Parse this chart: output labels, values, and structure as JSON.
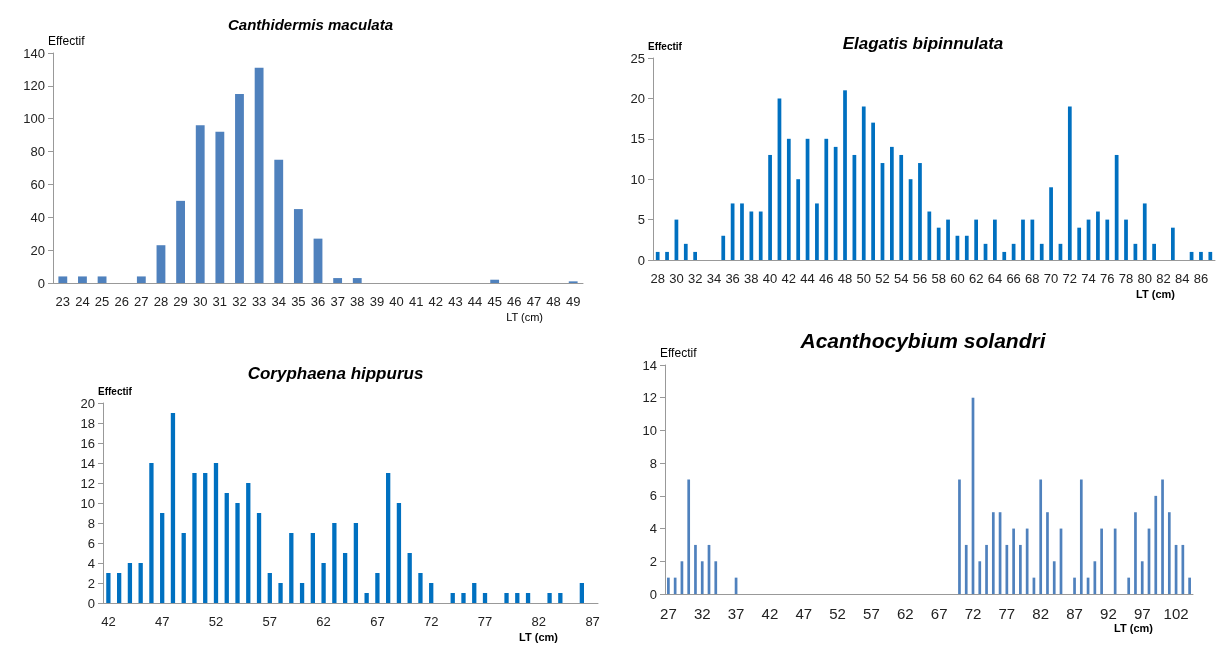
{
  "chart_data": [
    {
      "type": "bar",
      "title": "Canthidermis maculata",
      "xlabel": "LT (cm)",
      "ylabel": "Effectif",
      "color": "#4f81bd",
      "categories": [
        "23",
        "24",
        "25",
        "26",
        "27",
        "28",
        "29",
        "30",
        "31",
        "32",
        "33",
        "34",
        "35",
        "36",
        "37",
        "38",
        "39",
        "40",
        "41",
        "42",
        "43",
        "44",
        "45",
        "46",
        "47",
        "48",
        "49"
      ],
      "values": [
        4,
        4,
        4,
        0,
        4,
        23,
        50,
        96,
        92,
        115,
        131,
        75,
        45,
        27,
        3,
        3,
        0,
        0,
        0,
        0,
        0,
        0,
        2,
        0,
        0,
        0,
        1
      ],
      "ylim": [
        0,
        140
      ],
      "yticks": [
        0,
        20,
        40,
        60,
        80,
        100,
        120,
        140
      ]
    },
    {
      "type": "bar",
      "title": "Elagatis bipinnulata",
      "xlabel": "LT (cm)",
      "ylabel": "Effectif",
      "color": "#0070c0",
      "categories": [
        "28",
        null,
        "30",
        null,
        "32",
        null,
        "34",
        null,
        "36",
        null,
        "38",
        null,
        "40",
        null,
        "42",
        null,
        "44",
        null,
        "46",
        null,
        "48",
        null,
        "50",
        null,
        "52",
        null,
        "54",
        null,
        "56",
        null,
        "58",
        null,
        "60",
        null,
        "62",
        null,
        "64",
        null,
        "66",
        null,
        "68",
        null,
        "70",
        null,
        "72",
        null,
        "74",
        null,
        "76",
        null,
        "78",
        null,
        "80",
        null,
        "82",
        null,
        "84",
        null,
        "86",
        null
      ],
      "values": [
        1,
        1,
        5,
        2,
        1,
        0,
        0,
        3,
        7,
        7,
        6,
        6,
        13,
        20,
        15,
        10,
        15,
        7,
        15,
        14,
        21,
        13,
        19,
        17,
        12,
        14,
        13,
        10,
        12,
        6,
        4,
        5,
        3,
        3,
        5,
        2,
        5,
        1,
        2,
        5,
        5,
        2,
        9,
        2,
        19,
        4,
        5,
        6,
        5,
        13,
        5,
        2,
        7,
        2,
        0,
        4,
        0,
        1,
        1,
        1
      ],
      "ylim": [
        0,
        25
      ],
      "yticks": [
        0,
        5,
        10,
        15,
        20,
        25
      ]
    },
    {
      "type": "bar",
      "title": "Coryphaena hippurus",
      "xlabel": "LT (cm)",
      "ylabel": "Effectif",
      "color": "#0070c0",
      "categories": [
        "42",
        null,
        null,
        null,
        null,
        "47",
        null,
        null,
        null,
        null,
        "52",
        null,
        null,
        null,
        null,
        "57",
        null,
        null,
        null,
        null,
        "62",
        null,
        null,
        null,
        null,
        "67",
        null,
        null,
        null,
        null,
        "72",
        null,
        null,
        null,
        null,
        "77",
        null,
        null,
        null,
        null,
        "82",
        null,
        null,
        null,
        null,
        "87"
      ],
      "values": [
        3,
        3,
        4,
        4,
        14,
        9,
        19,
        7,
        13,
        13,
        14,
        11,
        10,
        12,
        9,
        3,
        2,
        7,
        2,
        7,
        4,
        8,
        5,
        8,
        1,
        3,
        13,
        10,
        5,
        3,
        2,
        0,
        1,
        1,
        2,
        1,
        0,
        1,
        1,
        1,
        0,
        1,
        1,
        0,
        2,
        0
      ],
      "ylim": [
        0,
        20
      ],
      "yticks": [
        0,
        2,
        4,
        6,
        8,
        10,
        12,
        14,
        16,
        18,
        20
      ]
    },
    {
      "type": "bar",
      "title": "Acanthocybium solandri",
      "xlabel": "LT (cm)",
      "ylabel": "Effectif",
      "color": "#4f81bd",
      "categories": [
        "27",
        null,
        null,
        null,
        null,
        "32",
        null,
        null,
        null,
        null,
        "37",
        null,
        null,
        null,
        null,
        "42",
        null,
        null,
        null,
        null,
        "47",
        null,
        null,
        null,
        null,
        "52",
        null,
        null,
        null,
        null,
        "57",
        null,
        null,
        null,
        null,
        "62",
        null,
        null,
        null,
        null,
        "67",
        null,
        null,
        null,
        null,
        "72",
        null,
        null,
        null,
        null,
        "77",
        null,
        null,
        null,
        null,
        "82",
        null,
        null,
        null,
        null,
        "87",
        null,
        null,
        null,
        null,
        "92",
        null,
        null,
        null,
        null,
        "97",
        null,
        null,
        null,
        null,
        "102",
        null,
        null
      ],
      "values": [
        1,
        1,
        2,
        7,
        3,
        2,
        3,
        2,
        0,
        0,
        1,
        0,
        0,
        0,
        0,
        0,
        0,
        0,
        0,
        0,
        0,
        0,
        0,
        0,
        0,
        0,
        0,
        0,
        0,
        0,
        0,
        0,
        0,
        0,
        0,
        0,
        0,
        0,
        0,
        0,
        0,
        0,
        0,
        7,
        3,
        12,
        2,
        3,
        5,
        5,
        3,
        4,
        3,
        4,
        1,
        7,
        5,
        2,
        4,
        0,
        1,
        7,
        1,
        2,
        4,
        0,
        4,
        0,
        1,
        5,
        2,
        4,
        6,
        7,
        5,
        3,
        3,
        1
      ],
      "ylim": [
        0,
        14
      ],
      "yticks": [
        0,
        2,
        4,
        6,
        8,
        10,
        12,
        14
      ]
    }
  ]
}
